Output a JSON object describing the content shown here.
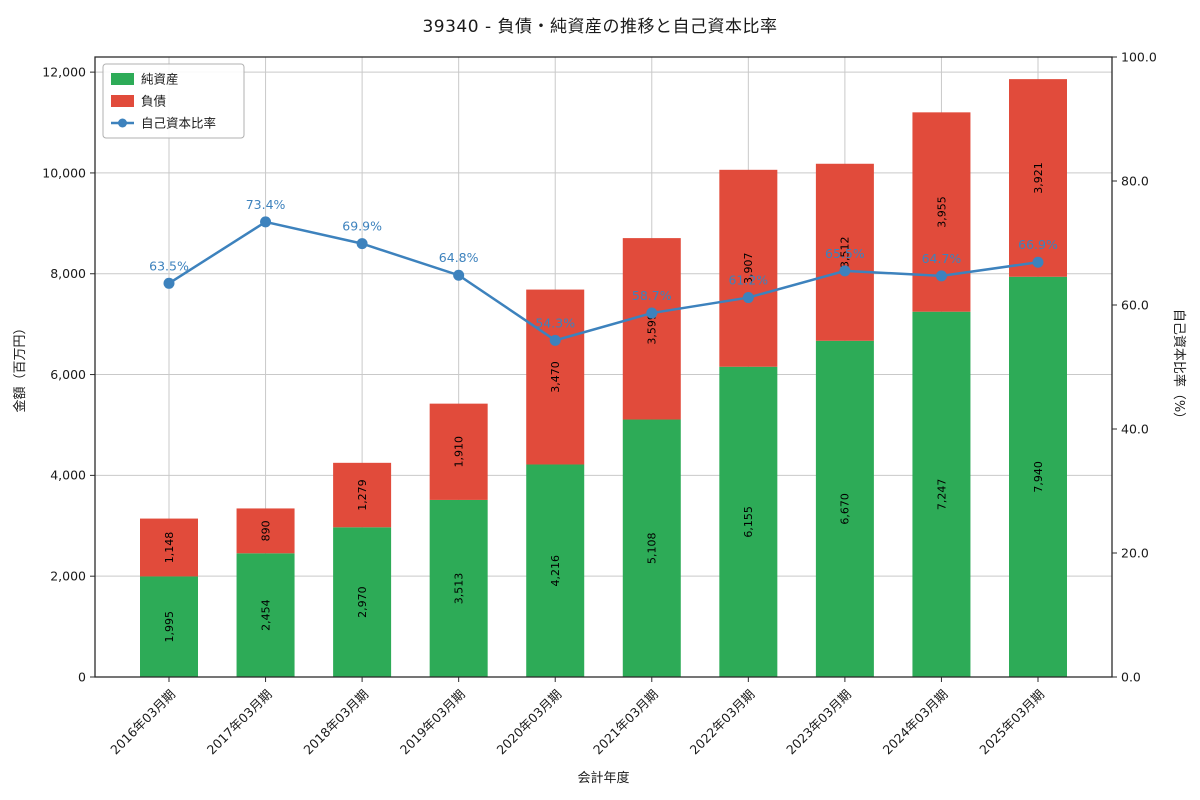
{
  "title": "39340 - 負債・純資産の推移と自己資本比率",
  "chart_data": {
    "type": "bar",
    "stacked": true,
    "title": "39340 - 負債・純資産の推移と自己資本比率",
    "xlabel": "会計年度",
    "ylabel_left": "金額（百万円）",
    "ylabel_right": "自己資本比率（%）",
    "ylim_left": [
      0,
      12300
    ],
    "yticks_left": [
      0,
      2000,
      4000,
      6000,
      8000,
      10000,
      12000
    ],
    "ylim_right": [
      0,
      100
    ],
    "yticks_right": [
      0,
      20,
      40,
      60,
      80,
      100
    ],
    "grid": true,
    "legend_position": "upper-left",
    "categories": [
      "2016年03月期",
      "2017年03月期",
      "2018年03月期",
      "2019年03月期",
      "2020年03月期",
      "2021年03月期",
      "2022年03月期",
      "2023年03月期",
      "2024年03月期",
      "2025年03月期"
    ],
    "series": [
      {
        "name": "純資産",
        "type": "bar",
        "color": "#2dab57",
        "values": [
          1995,
          2454,
          2970,
          3513,
          4216,
          5108,
          6155,
          6670,
          7247,
          7940
        ]
      },
      {
        "name": "負債",
        "type": "bar",
        "color": "#e14b3b",
        "values": [
          1148,
          890,
          1279,
          1910,
          3470,
          3599,
          3907,
          3512,
          3955,
          3921
        ]
      },
      {
        "name": "自己資本比率",
        "type": "line",
        "color": "#3d82bd",
        "values": [
          63.5,
          73.4,
          69.9,
          64.8,
          54.3,
          58.7,
          61.2,
          65.5,
          64.7,
          66.9
        ],
        "labels": [
          "63.5%",
          "73.4%",
          "69.9%",
          "64.8%",
          "54.3%",
          "58.7%",
          "61.2%",
          "65.5%",
          "64.7%",
          "66.9%"
        ]
      }
    ]
  }
}
